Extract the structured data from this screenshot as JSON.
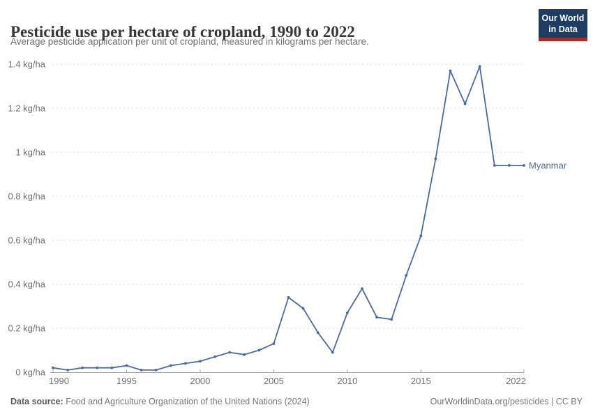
{
  "header": {
    "title": "Pesticide use per hectare of cropland, 1990 to 2022",
    "subtitle": "Average pesticide application per unit of cropland, measured in kilograms per hectare.",
    "logo": {
      "line1": "Our World",
      "line2": "in Data",
      "bg_color": "#1d3d63",
      "accent_color": "#a92c26"
    }
  },
  "chart_data": {
    "type": "line",
    "title": "Pesticide use per hectare of cropland, 1990 to 2022",
    "subtitle": "Average pesticide application per unit of cropland, measured in kilograms per hectare.",
    "xlabel": "",
    "ylabel": "kg/ha",
    "xlim": [
      1990,
      2022
    ],
    "ylim": [
      0,
      1.4
    ],
    "grid": "horizontal-dashed",
    "legend_position": "end-of-line",
    "x_ticks": [
      1990,
      1995,
      2000,
      2005,
      2010,
      2015,
      2022
    ],
    "y_ticks": [
      0,
      0.2,
      0.4,
      0.6,
      0.8,
      1,
      1.2,
      1.4
    ],
    "y_tick_labels": [
      "0 kg/ha",
      "0.2 kg/ha",
      "0.4 kg/ha",
      "0.6 kg/ha",
      "0.8 kg/ha",
      "1 kg/ha",
      "1.2 kg/ha",
      "1.4 kg/ha"
    ],
    "series": [
      {
        "name": "Myanmar",
        "color": "#4c6a9c",
        "x": [
          1990,
          1991,
          1992,
          1993,
          1994,
          1995,
          1996,
          1997,
          1998,
          1999,
          2000,
          2001,
          2002,
          2003,
          2004,
          2005,
          2006,
          2007,
          2008,
          2009,
          2010,
          2011,
          2012,
          2013,
          2014,
          2015,
          2016,
          2017,
          2018,
          2019,
          2020,
          2021,
          2022
        ],
        "values": [
          0.02,
          0.01,
          0.02,
          0.02,
          0.02,
          0.03,
          0.01,
          0.01,
          0.03,
          0.04,
          0.05,
          0.07,
          0.09,
          0.08,
          0.1,
          0.13,
          0.34,
          0.29,
          0.18,
          0.09,
          0.27,
          0.38,
          0.25,
          0.24,
          0.44,
          0.62,
          0.97,
          1.37,
          1.22,
          1.39,
          0.94,
          0.94,
          0.94
        ]
      }
    ],
    "colors": {
      "gridline": "#dadada",
      "axis": "#a3a3a3",
      "tick_label": "#6e6e6e"
    }
  },
  "footer": {
    "source_label": "Data source:",
    "source_text": " Food and Agriculture Organization of the United Nations (2024)",
    "credit": "OurWorldinData.org/pesticides | CC BY"
  }
}
